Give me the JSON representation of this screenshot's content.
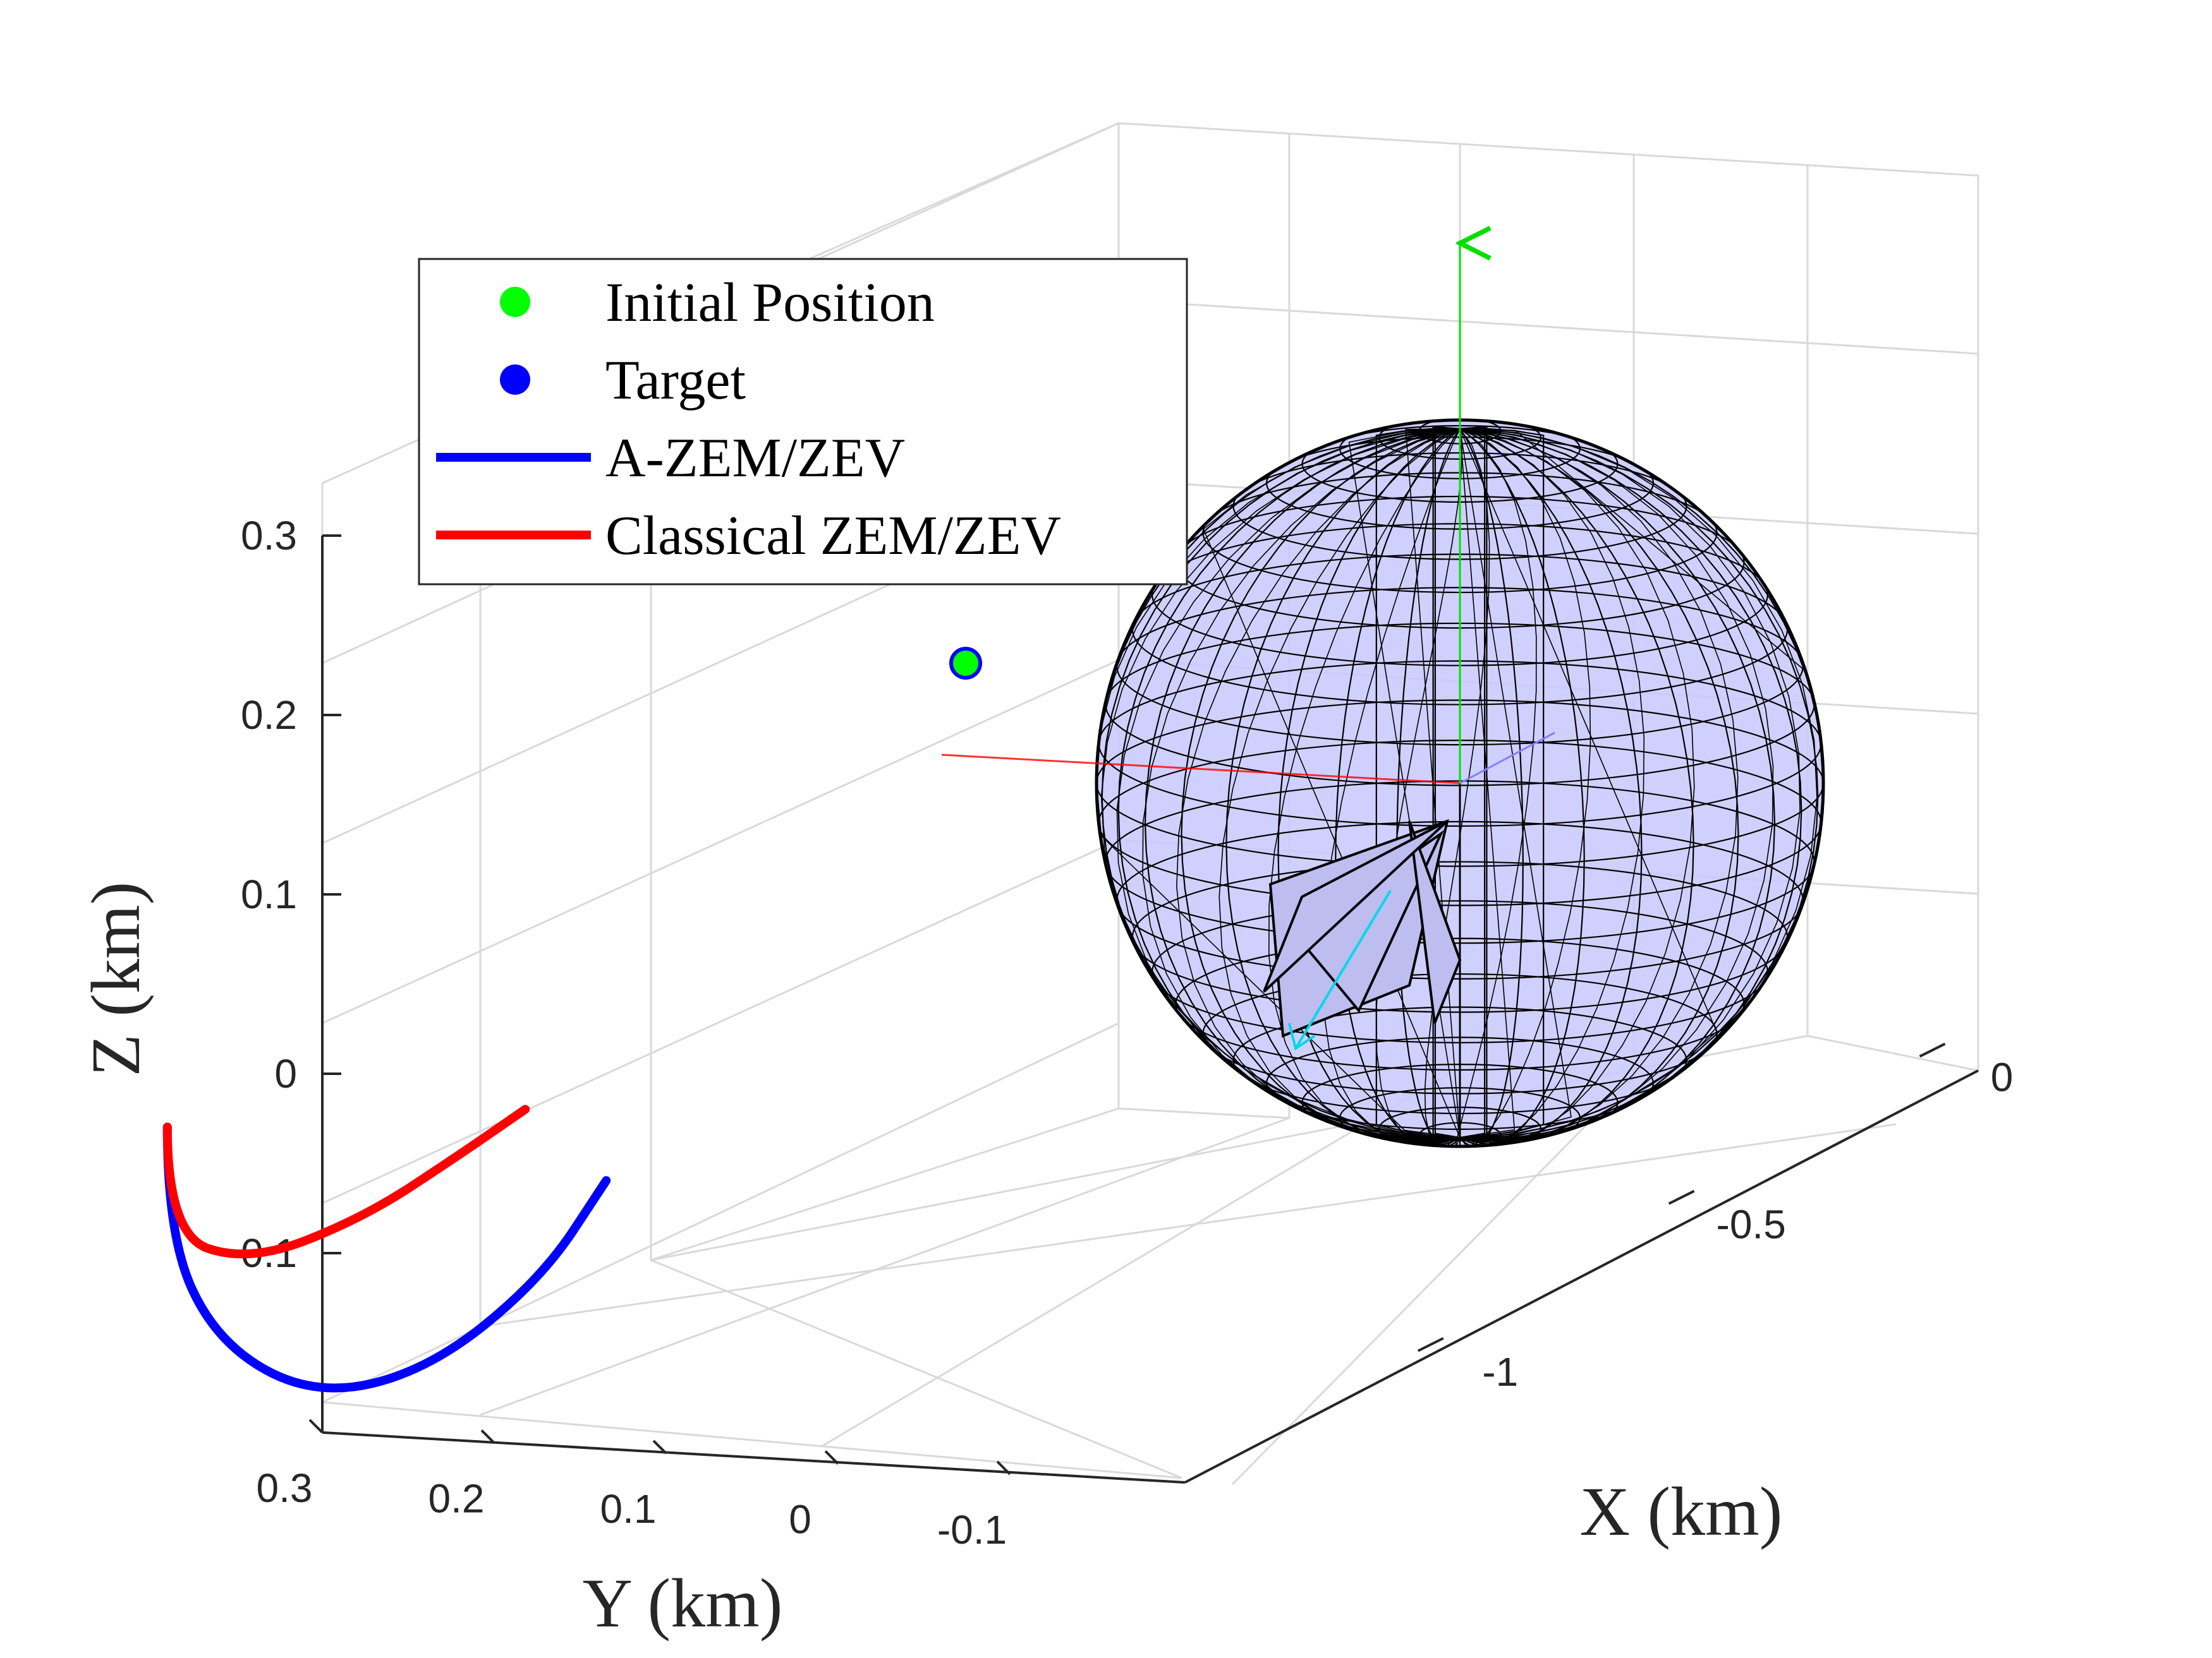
{
  "chart_data": {
    "type": "line3d",
    "xlabel": "X (km)",
    "ylabel": "Y (km)",
    "zlabel": "Z (km)",
    "x_ticks": [
      "-1",
      "-0.5",
      "0"
    ],
    "y_ticks": [
      "0.3",
      "0.2",
      "0.1",
      "0",
      "-0.1"
    ],
    "z_ticks": [
      "-0.1",
      "0",
      "0.1",
      "0.2",
      "0.3"
    ],
    "xlim": [
      -1.2,
      0.35
    ],
    "ylim": [
      -0.2,
      0.3
    ],
    "zlim": [
      -0.2,
      0.3
    ],
    "grid": true,
    "legend_position": "top-left",
    "legend": [
      {
        "label": "Initial Position",
        "kind": "marker",
        "color": "#00ff00"
      },
      {
        "label": "Target",
        "kind": "marker",
        "color": "#0000ff"
      },
      {
        "label": "A-ZEM/ZEV",
        "kind": "line",
        "color": "#0000ff"
      },
      {
        "label": "Classical ZEM/ZEV",
        "kind": "line",
        "color": "#ff0000"
      }
    ],
    "body": {
      "type": "sphere-mesh",
      "fill": "#c8c8ff",
      "edge": "#000000"
    },
    "initial_position": {
      "x": -0.92,
      "y": 0.05,
      "z": 0.23
    },
    "series": [
      {
        "name": "A-ZEM/ZEV",
        "color": "#0000ff",
        "points": [
          {
            "x": -0.92,
            "y": 0.05,
            "z": 0.23
          },
          {
            "x": -0.92,
            "y": 0.05,
            "z": 0.17
          },
          {
            "x": -0.88,
            "y": 0.04,
            "z": 0.1
          },
          {
            "x": -0.8,
            "y": 0.02,
            "z": 0.05
          },
          {
            "x": -0.7,
            "y": 0.0,
            "z": 0.04
          },
          {
            "x": -0.58,
            "y": -0.01,
            "z": 0.06
          },
          {
            "x": -0.52,
            "y": -0.02,
            "z": 0.1
          }
        ]
      },
      {
        "name": "Classical ZEM/ZEV",
        "color": "#ff0000",
        "points": [
          {
            "x": -0.92,
            "y": 0.05,
            "z": 0.23
          },
          {
            "x": -0.92,
            "y": 0.05,
            "z": 0.17
          },
          {
            "x": -0.86,
            "y": 0.03,
            "z": 0.14
          },
          {
            "x": -0.76,
            "y": 0.01,
            "z": 0.14
          },
          {
            "x": -0.66,
            "y": 0.0,
            "z": 0.15
          },
          {
            "x": -0.6,
            "y": -0.01,
            "z": 0.16
          }
        ]
      }
    ]
  }
}
